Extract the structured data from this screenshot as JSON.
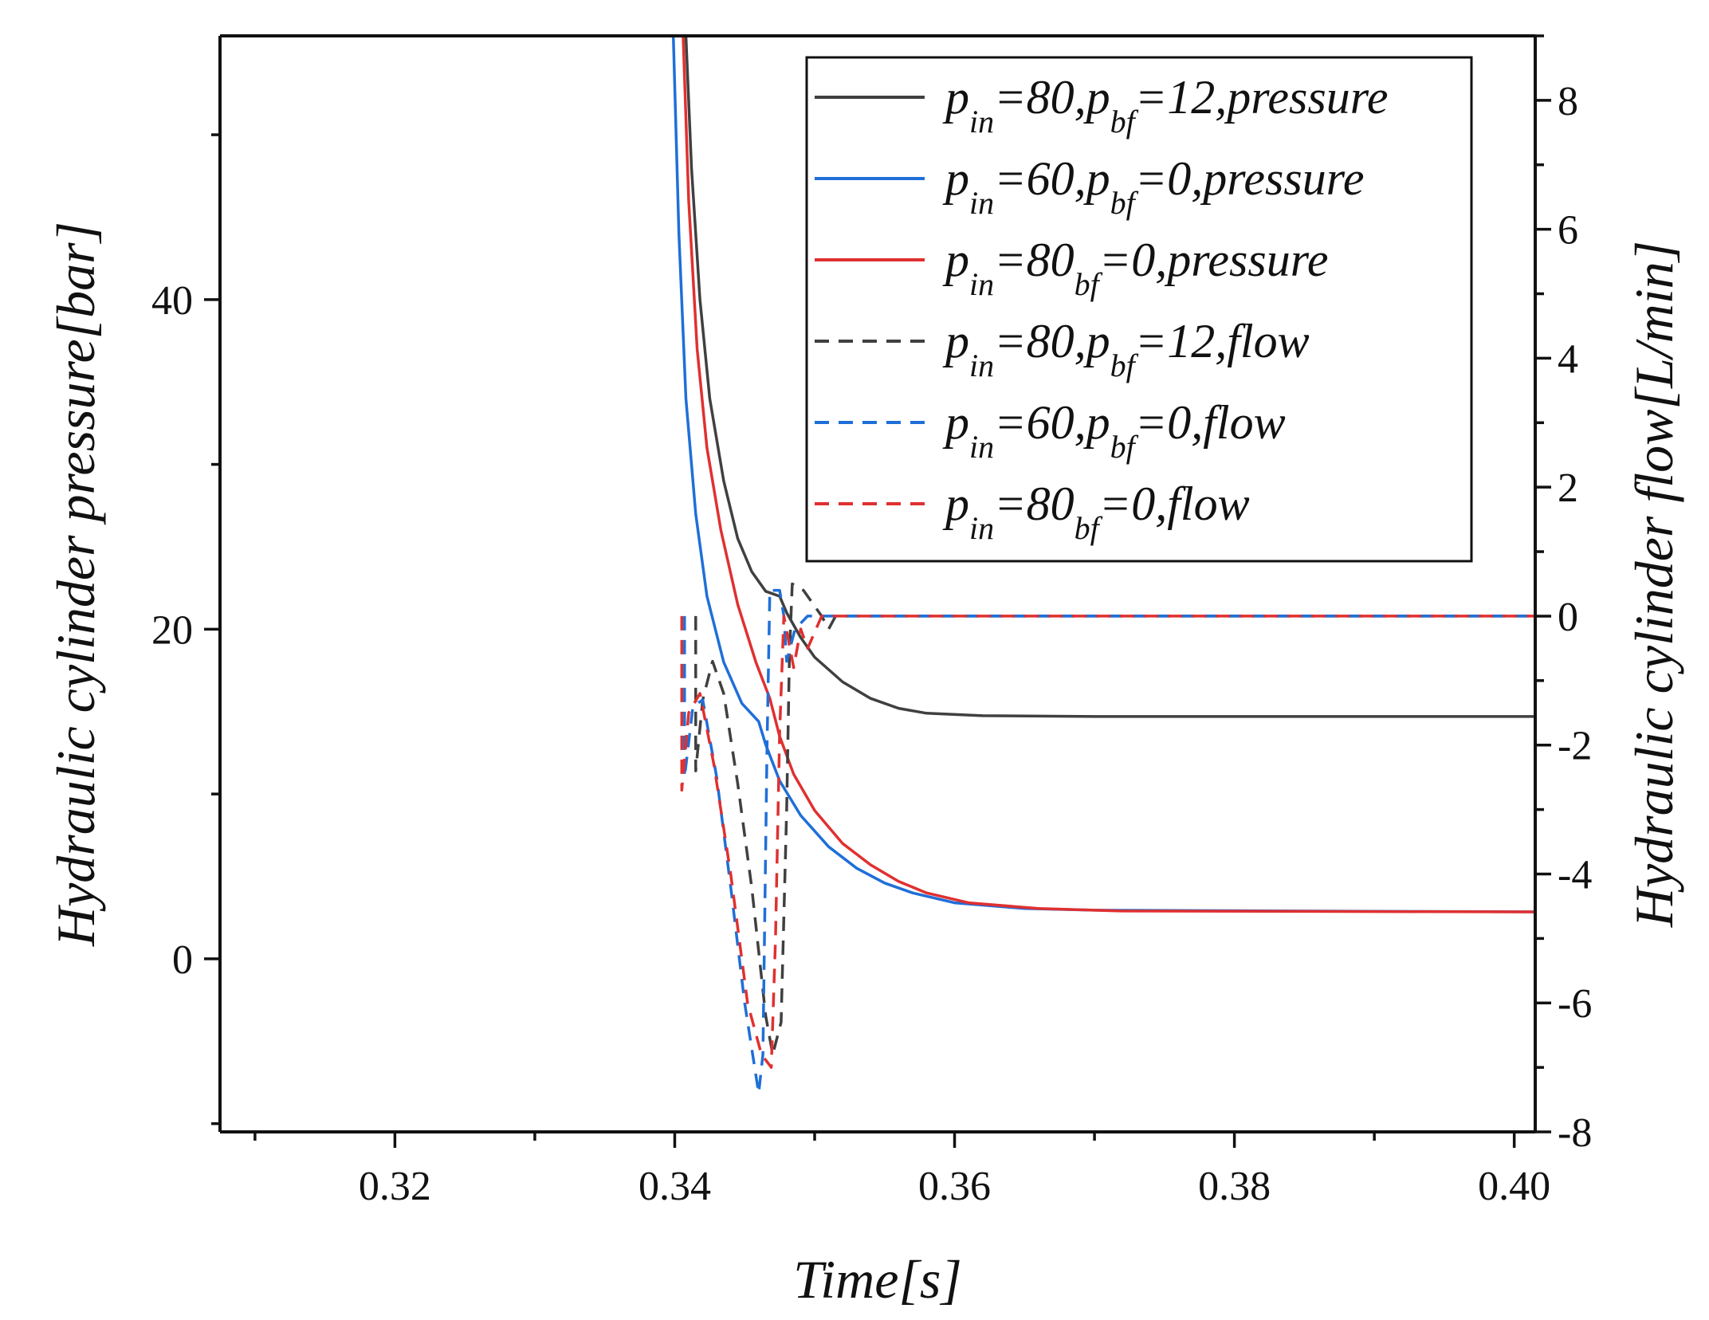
{
  "chart_data": {
    "type": "line",
    "title": "",
    "xlabel": "Time[s]",
    "ylabel_left": "Hydraulic cylinder pressure[bar]",
    "ylabel_right": "Hydraulic cylinder flow[L/min]",
    "xlim": [
      0.3075,
      0.4015
    ],
    "ylim_left": [
      -10.5,
      56
    ],
    "ylim_right": [
      -8,
      9
    ],
    "x_ticks": [
      0.32,
      0.34,
      0.36,
      0.38,
      0.4
    ],
    "x_tick_labels": [
      "0.32",
      "0.34",
      "0.36",
      "0.38",
      "0.40"
    ],
    "y_left_ticks": [
      0,
      20,
      40
    ],
    "y_left_tick_labels": [
      "0",
      "20",
      "40"
    ],
    "y_right_ticks": [
      -8,
      -6,
      -4,
      -2,
      0,
      2,
      4,
      6,
      8
    ],
    "y_right_tick_labels": [
      "-8",
      "-6",
      "-4",
      "-2",
      "0",
      "2",
      "4",
      "6",
      "8"
    ],
    "grid": false,
    "legend_position": "top-right",
    "series": [
      {
        "name": "p_in=80,p_bf=12,pressure",
        "legend": {
          "p1": "p",
          "s1": "in",
          "t1": "=80,",
          "p2": "p",
          "s2": "bf",
          "t2": "=12,pressure"
        },
        "color": "#404040",
        "dash": "solid",
        "axis": "left",
        "points": [
          [
            0.3408,
            56
          ],
          [
            0.3412,
            48
          ],
          [
            0.3418,
            40
          ],
          [
            0.3425,
            34
          ],
          [
            0.3435,
            29
          ],
          [
            0.3445,
            25.5
          ],
          [
            0.3455,
            23.5
          ],
          [
            0.3465,
            22.3
          ],
          [
            0.3475,
            22
          ],
          [
            0.348,
            21
          ],
          [
            0.349,
            19.5
          ],
          [
            0.35,
            18.3
          ],
          [
            0.352,
            16.8
          ],
          [
            0.354,
            15.8
          ],
          [
            0.356,
            15.2
          ],
          [
            0.358,
            14.9
          ],
          [
            0.362,
            14.75
          ],
          [
            0.37,
            14.7
          ],
          [
            0.385,
            14.7
          ],
          [
            0.4015,
            14.7
          ]
        ]
      },
      {
        "name": "p_in=60,p_bf=0,pressure",
        "legend": {
          "p1": "p",
          "s1": "in",
          "t1": "=60,",
          "p2": "p",
          "s2": "bf",
          "t2": "=0,pressure"
        },
        "color": "#1f6fd8",
        "dash": "solid",
        "axis": "left",
        "points": [
          [
            0.3399,
            56
          ],
          [
            0.3403,
            44
          ],
          [
            0.3408,
            34
          ],
          [
            0.3415,
            27
          ],
          [
            0.3423,
            22
          ],
          [
            0.3435,
            18
          ],
          [
            0.3448,
            15.5
          ],
          [
            0.346,
            14.4
          ],
          [
            0.3465,
            13
          ],
          [
            0.3475,
            10.8
          ],
          [
            0.349,
            8.7
          ],
          [
            0.351,
            6.8
          ],
          [
            0.353,
            5.5
          ],
          [
            0.355,
            4.6
          ],
          [
            0.357,
            4
          ],
          [
            0.36,
            3.4
          ],
          [
            0.365,
            3.05
          ],
          [
            0.37,
            2.95
          ],
          [
            0.4015,
            2.85
          ]
        ]
      },
      {
        "name": "p_in=80_bf=0,pressure",
        "legend": {
          "p1": "p",
          "s1": "in",
          "t1": "=80",
          "p2": "",
          "s2": "bf",
          "t2": "=0,pressure"
        },
        "color": "#e03030",
        "dash": "solid",
        "axis": "left",
        "points": [
          [
            0.3406,
            56
          ],
          [
            0.341,
            46
          ],
          [
            0.3416,
            37
          ],
          [
            0.3423,
            31
          ],
          [
            0.3433,
            26
          ],
          [
            0.3445,
            21.5
          ],
          [
            0.3458,
            18
          ],
          [
            0.3468,
            15.8
          ],
          [
            0.3475,
            13.5
          ],
          [
            0.3485,
            11.2
          ],
          [
            0.35,
            9
          ],
          [
            0.352,
            7
          ],
          [
            0.354,
            5.7
          ],
          [
            0.356,
            4.7
          ],
          [
            0.358,
            4
          ],
          [
            0.361,
            3.4
          ],
          [
            0.366,
            3.05
          ],
          [
            0.372,
            2.9
          ],
          [
            0.4015,
            2.85
          ]
        ]
      },
      {
        "name": "p_in=80,p_bf=12,flow",
        "legend": {
          "p1": "p",
          "s1": "in",
          "t1": "=80,",
          "p2": "p",
          "s2": "bf",
          "t2": "=12,flow"
        },
        "color": "#404040",
        "dash": "dashed",
        "axis": "right",
        "points": [
          [
            0.3415,
            0
          ],
          [
            0.3415,
            -2.4
          ],
          [
            0.342,
            -1.3
          ],
          [
            0.3427,
            -0.7
          ],
          [
            0.3435,
            -1.2
          ],
          [
            0.3445,
            -2.6
          ],
          [
            0.3455,
            -4.2
          ],
          [
            0.3465,
            -6.2
          ],
          [
            0.347,
            -6.8
          ],
          [
            0.3476,
            -6.3
          ],
          [
            0.348,
            -3
          ],
          [
            0.3482,
            -0.6
          ],
          [
            0.3484,
            0.5
          ],
          [
            0.3492,
            0.4
          ],
          [
            0.3505,
            0
          ],
          [
            0.351,
            -0.2
          ],
          [
            0.3515,
            0
          ],
          [
            0.4015,
            0
          ]
        ]
      },
      {
        "name": "p_in=60,p_bf=0,flow",
        "legend": {
          "p1": "p",
          "s1": "in",
          "t1": "=60,",
          "p2": "p",
          "s2": "bf",
          "t2": "=0,flow"
        },
        "color": "#1f6fd8",
        "dash": "dashed",
        "axis": "right",
        "points": [
          [
            0.3407,
            0
          ],
          [
            0.3407,
            -2.5
          ],
          [
            0.3413,
            -1.4
          ],
          [
            0.342,
            -1.3
          ],
          [
            0.343,
            -2.5
          ],
          [
            0.344,
            -4.2
          ],
          [
            0.345,
            -6
          ],
          [
            0.346,
            -7.4
          ],
          [
            0.3463,
            -6.8
          ],
          [
            0.3466,
            -2
          ],
          [
            0.3468,
            0.4
          ],
          [
            0.3475,
            0.4
          ],
          [
            0.3478,
            0
          ],
          [
            0.348,
            -0.7
          ],
          [
            0.3486,
            -0.2
          ],
          [
            0.3495,
            0
          ],
          [
            0.4015,
            0
          ]
        ]
      },
      {
        "name": "p_in=80_bf=0,flow",
        "legend": {
          "p1": "p",
          "s1": "in",
          "t1": "=80",
          "p2": "",
          "s2": "bf",
          "t2": "=0,flow"
        },
        "color": "#e03030",
        "dash": "dashed",
        "axis": "right",
        "points": [
          [
            0.3405,
            0
          ],
          [
            0.3405,
            -2.7
          ],
          [
            0.341,
            -1.5
          ],
          [
            0.3418,
            -1.2
          ],
          [
            0.3428,
            -2.3
          ],
          [
            0.344,
            -4
          ],
          [
            0.3452,
            -6
          ],
          [
            0.3462,
            -6.8
          ],
          [
            0.3469,
            -7
          ],
          [
            0.3472,
            -5
          ],
          [
            0.3475,
            -1.8
          ],
          [
            0.3478,
            0
          ],
          [
            0.3485,
            -0.8
          ],
          [
            0.349,
            -0.2
          ],
          [
            0.3495,
            -0.5
          ],
          [
            0.3505,
            0
          ],
          [
            0.4015,
            0
          ]
        ]
      }
    ]
  }
}
